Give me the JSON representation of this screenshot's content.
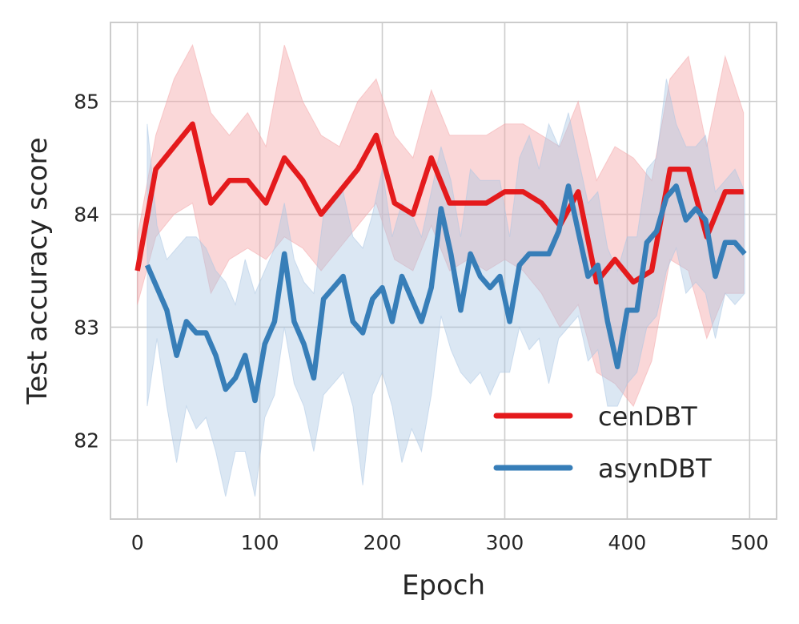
{
  "chart_data": {
    "type": "line",
    "title": "",
    "xlabel": "Epoch",
    "ylabel": "Test accuracy score",
    "xlim": [
      -22,
      522
    ],
    "ylim": [
      81.3,
      85.7
    ],
    "xticks": [
      "0",
      "100",
      "200",
      "300",
      "400",
      "500"
    ],
    "yticks": [
      "82",
      "83",
      "84",
      "85"
    ],
    "grid": true,
    "legend_position": "bottom-right",
    "series": [
      {
        "name": "cenDBT",
        "color": "#e41a1c",
        "band_color": "#f4a6a8",
        "x": [
          0,
          15,
          30,
          45,
          60,
          75,
          90,
          105,
          120,
          135,
          150,
          165,
          180,
          195,
          210,
          225,
          240,
          255,
          270,
          285,
          300,
          315,
          330,
          345,
          360,
          375,
          390,
          405,
          420,
          435,
          450,
          465,
          480,
          495
        ],
        "y": [
          83.5,
          84.4,
          84.6,
          84.8,
          84.1,
          84.3,
          84.3,
          84.1,
          84.5,
          84.3,
          84.0,
          84.2,
          84.4,
          84.7,
          84.1,
          84.0,
          84.5,
          84.1,
          84.1,
          84.1,
          84.2,
          84.2,
          84.1,
          83.9,
          84.2,
          83.4,
          83.6,
          83.4,
          83.5,
          84.4,
          84.4,
          83.8,
          84.2,
          84.2
        ],
        "lower": [
          83.2,
          83.8,
          84.0,
          84.1,
          83.3,
          83.6,
          83.7,
          83.6,
          83.8,
          83.7,
          83.5,
          83.7,
          83.9,
          84.1,
          83.6,
          83.5,
          83.9,
          83.5,
          83.6,
          83.5,
          83.6,
          83.5,
          83.3,
          83.0,
          83.2,
          82.6,
          82.5,
          82.3,
          82.7,
          83.6,
          83.5,
          82.9,
          83.3,
          83.3
        ],
        "upper": [
          83.8,
          84.7,
          85.2,
          85.5,
          84.9,
          84.7,
          84.9,
          84.6,
          85.5,
          85.0,
          84.7,
          84.6,
          85.0,
          85.2,
          84.7,
          84.5,
          85.1,
          84.7,
          84.7,
          84.7,
          84.8,
          84.8,
          84.7,
          84.6,
          85.0,
          84.3,
          84.6,
          84.5,
          84.3,
          85.2,
          85.4,
          84.6,
          85.4,
          84.9
        ]
      },
      {
        "name": "asynDBT",
        "color": "#377eb8",
        "band_color": "#a9c6e3",
        "x": [
          8,
          16,
          24,
          32,
          40,
          48,
          56,
          64,
          72,
          80,
          88,
          96,
          104,
          112,
          120,
          128,
          136,
          144,
          152,
          160,
          168,
          176,
          184,
          192,
          200,
          208,
          216,
          224,
          232,
          240,
          248,
          256,
          264,
          272,
          280,
          288,
          296,
          304,
          312,
          320,
          328,
          336,
          344,
          352,
          360,
          368,
          376,
          384,
          392,
          400,
          408,
          416,
          424,
          432,
          440,
          448,
          456,
          464,
          472,
          480,
          488,
          496
        ],
        "y": [
          83.55,
          83.35,
          83.15,
          82.75,
          83.05,
          82.95,
          82.95,
          82.75,
          82.45,
          82.55,
          82.75,
          82.35,
          82.85,
          83.05,
          83.65,
          83.05,
          82.85,
          82.55,
          83.25,
          83.35,
          83.45,
          83.05,
          82.95,
          83.25,
          83.35,
          83.05,
          83.45,
          83.25,
          83.05,
          83.35,
          84.05,
          83.65,
          83.15,
          83.65,
          83.45,
          83.35,
          83.45,
          83.05,
          83.55,
          83.65,
          83.65,
          83.65,
          83.85,
          84.25,
          83.85,
          83.45,
          83.55,
          83.05,
          82.65,
          83.15,
          83.15,
          83.75,
          83.85,
          84.15,
          84.25,
          83.95,
          84.05,
          83.95,
          83.45,
          83.75,
          83.75,
          83.65
        ],
        "lower": [
          82.3,
          82.9,
          82.3,
          81.8,
          82.3,
          82.1,
          82.2,
          81.9,
          81.5,
          81.9,
          81.9,
          81.5,
          82.2,
          82.4,
          83.0,
          82.5,
          82.3,
          81.9,
          82.4,
          82.5,
          82.6,
          82.3,
          81.6,
          82.4,
          82.6,
          82.3,
          81.8,
          82.1,
          81.9,
          82.4,
          83.1,
          82.8,
          82.6,
          82.5,
          82.6,
          82.4,
          82.6,
          82.6,
          83.0,
          82.8,
          82.9,
          82.5,
          82.9,
          83.0,
          83.1,
          82.7,
          82.8,
          82.3,
          82.3,
          82.5,
          82.6,
          83.0,
          83.1,
          83.5,
          83.7,
          83.3,
          83.4,
          83.3,
          82.9,
          83.3,
          83.2,
          83.3
        ],
        "upper": [
          84.8,
          83.9,
          83.6,
          83.7,
          83.8,
          83.8,
          83.7,
          83.5,
          83.4,
          83.2,
          83.6,
          83.3,
          83.5,
          83.7,
          84.1,
          83.6,
          83.4,
          83.3,
          84.0,
          84.1,
          84.2,
          83.8,
          83.7,
          84.0,
          84.4,
          83.8,
          84.1,
          84.0,
          83.8,
          84.2,
          84.6,
          84.3,
          83.8,
          84.4,
          84.3,
          84.3,
          84.3,
          83.8,
          84.5,
          84.7,
          84.4,
          84.8,
          84.6,
          84.9,
          84.5,
          84.1,
          84.2,
          83.7,
          83.5,
          83.8,
          83.8,
          84.4,
          84.5,
          85.2,
          84.8,
          84.6,
          84.6,
          84.7,
          84.2,
          84.3,
          84.4,
          84.2
        ]
      }
    ]
  }
}
